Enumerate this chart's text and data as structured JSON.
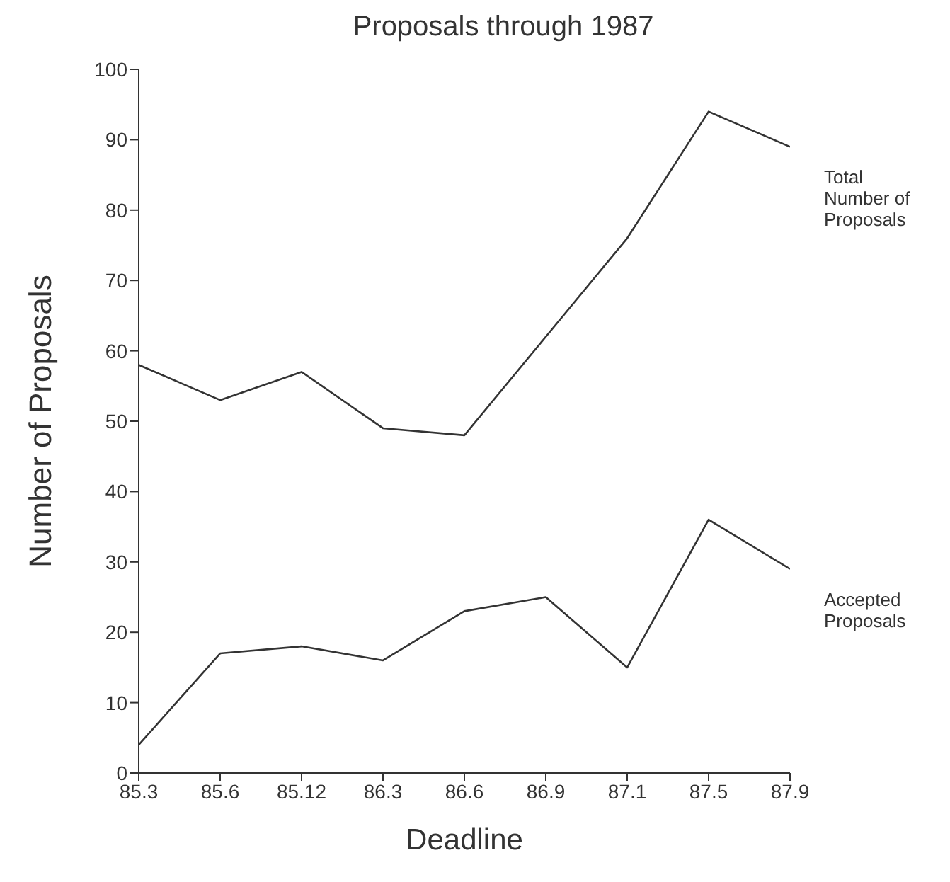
{
  "chart_data": {
    "type": "line",
    "title": "Proposals through 1987",
    "xlabel": "Deadline",
    "ylabel": "Number of Proposals",
    "categories": [
      "85.3",
      "85.6",
      "85.12",
      "86.3",
      "86.6",
      "86.9",
      "87.1",
      "87.5",
      "87.9"
    ],
    "series": [
      {
        "name": "Total Number of Proposals",
        "color": "#333333",
        "values": [
          58,
          53,
          57,
          49,
          48,
          62,
          76,
          94,
          89
        ]
      },
      {
        "name": "Accepted Proposals",
        "color": "#333333",
        "values": [
          4,
          17,
          18,
          16,
          23,
          25,
          15,
          36,
          29
        ]
      }
    ],
    "ylim": [
      0,
      100
    ],
    "yticks": [
      0,
      10,
      20,
      30,
      40,
      50,
      60,
      70,
      80,
      90,
      100
    ]
  }
}
